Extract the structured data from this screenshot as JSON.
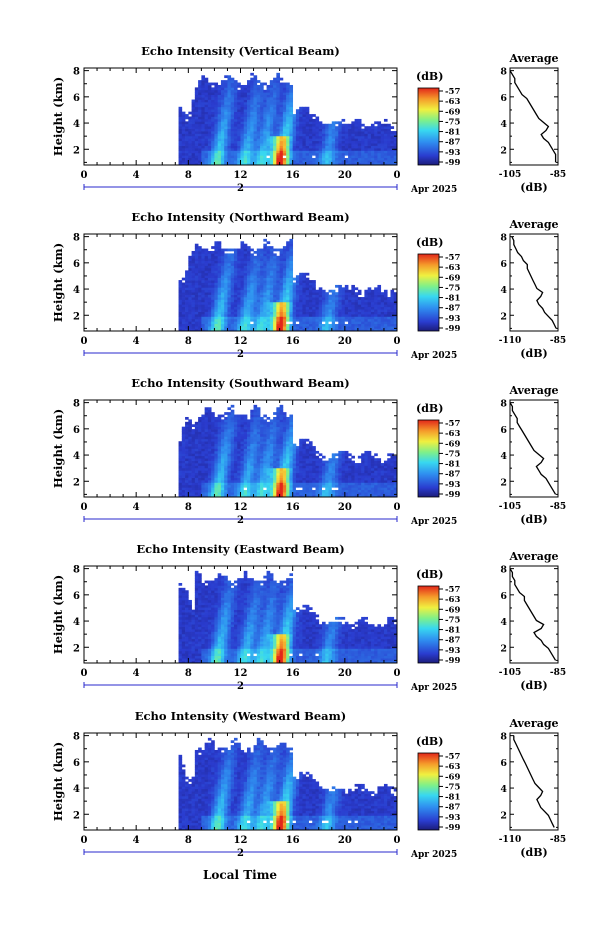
{
  "figure": {
    "xlabel": "Local Time",
    "cbar_unit": "(dB)",
    "avg_title": "Average",
    "avg_xlabel": "(dB)",
    "date_label": "Apr 2025",
    "date_day": "2",
    "height_label": "Height (km)"
  },
  "chart_data": [
    {
      "type": "heatmap",
      "title": "Echo Intensity (Vertical Beam)",
      "ylabel": "Height (km)",
      "x_ticks": [
        "0",
        "4",
        "8",
        "12",
        "16",
        "20",
        "0"
      ],
      "xlim": [
        0,
        24
      ],
      "y_ticks": [
        "2",
        "4",
        "6",
        "8"
      ],
      "ylim": [
        0.8,
        8.2
      ],
      "colorbar": {
        "unit": "(dB)",
        "ticks": [
          "-57",
          "-63",
          "-69",
          "-75",
          "-81",
          "-87",
          "-93",
          "-99"
        ]
      },
      "average": {
        "title": "Average",
        "xlabel": "(dB)",
        "x_ticks": [
          "-105",
          "-85"
        ],
        "y_ticks": [
          "2",
          "4",
          "6",
          "8"
        ],
        "profile_db": [
          -86,
          -86,
          -86,
          -87,
          -88,
          -89,
          -91,
          -92,
          -90,
          -89,
          -91,
          -93,
          -94,
          -95,
          -96,
          -97,
          -98,
          -100,
          -101,
          -102,
          -103,
          -103,
          -104,
          -105
        ]
      }
    },
    {
      "type": "heatmap",
      "title": "Echo Intensity (Northward Beam)",
      "ylabel": "Height (km)",
      "x_ticks": [
        "0",
        "4",
        "8",
        "12",
        "16",
        "20",
        "0"
      ],
      "xlim": [
        0,
        24
      ],
      "y_ticks": [
        "2",
        "4",
        "6",
        "8"
      ],
      "ylim": [
        0.8,
        8.2
      ],
      "colorbar": {
        "unit": "(dB)",
        "ticks": [
          "-57",
          "-63",
          "-69",
          "-75",
          "-81",
          "-87",
          "-93",
          "-99"
        ]
      },
      "average": {
        "title": "Average",
        "xlabel": "(dB)",
        "x_ticks": [
          "-110",
          "-85"
        ],
        "y_ticks": [
          "2",
          "4",
          "6",
          "8"
        ],
        "profile_db": [
          -86,
          -87,
          -88,
          -90,
          -92,
          -93,
          -95,
          -96,
          -94,
          -93,
          -96,
          -97,
          -98,
          -99,
          -100,
          -101,
          -101,
          -103,
          -104,
          -106,
          -107,
          -108,
          -108,
          -109
        ]
      }
    },
    {
      "type": "heatmap",
      "title": "Echo Intensity (Southward Beam)",
      "ylabel": "Height (km)",
      "x_ticks": [
        "0",
        "4",
        "8",
        "12",
        "16",
        "20",
        "0"
      ],
      "xlim": [
        0,
        24
      ],
      "y_ticks": [
        "2",
        "4",
        "6",
        "8"
      ],
      "ylim": [
        0.8,
        8.2
      ],
      "colorbar": {
        "unit": "(dB)",
        "ticks": [
          "-57",
          "-63",
          "-69",
          "-75",
          "-81",
          "-87",
          "-93",
          "-99"
        ]
      },
      "average": {
        "title": "Average",
        "xlabel": "(dB)",
        "x_ticks": [
          "-105",
          "-85"
        ],
        "y_ticks": [
          "2",
          "4",
          "6",
          "8"
        ],
        "profile_db": [
          -86,
          -87,
          -88,
          -89,
          -90,
          -92,
          -93,
          -94,
          -92,
          -91,
          -93,
          -95,
          -96,
          -97,
          -98,
          -99,
          -100,
          -101,
          -102,
          -102,
          -103,
          -104,
          -104,
          -105
        ]
      }
    },
    {
      "type": "heatmap",
      "title": "Echo Intensity (Eastward Beam)",
      "ylabel": "Height (km)",
      "x_ticks": [
        "0",
        "4",
        "8",
        "12",
        "16",
        "20",
        "0"
      ],
      "xlim": [
        0,
        24
      ],
      "y_ticks": [
        "2",
        "4",
        "6",
        "8"
      ],
      "ylim": [
        0.8,
        8.2
      ],
      "colorbar": {
        "unit": "(dB)",
        "ticks": [
          "-57",
          "-63",
          "-69",
          "-75",
          "-81",
          "-87",
          "-93",
          "-99"
        ]
      },
      "average": {
        "title": "Average",
        "xlabel": "(dB)",
        "x_ticks": [
          "-105",
          "-85"
        ],
        "y_ticks": [
          "2",
          "4",
          "6",
          "8"
        ],
        "profile_db": [
          -86,
          -87,
          -88,
          -89,
          -91,
          -92,
          -94,
          -95,
          -92,
          -91,
          -94,
          -95,
          -96,
          -97,
          -98,
          -99,
          -99,
          -101,
          -102,
          -103,
          -103,
          -104,
          -104,
          -105
        ]
      }
    },
    {
      "type": "heatmap",
      "title": "Echo Intensity (Westward Beam)",
      "ylabel": "Height (km)",
      "x_ticks": [
        "0",
        "4",
        "8",
        "12",
        "16",
        "20",
        "0"
      ],
      "xlim": [
        0,
        24
      ],
      "y_ticks": [
        "2",
        "4",
        "6",
        "8"
      ],
      "ylim": [
        0.8,
        8.2
      ],
      "colorbar": {
        "unit": "(dB)",
        "ticks": [
          "-57",
          "-63",
          "-69",
          "-75",
          "-81",
          "-87",
          "-93",
          "-99"
        ]
      },
      "average": {
        "title": "Average",
        "xlabel": "(dB)",
        "x_ticks": [
          "-110",
          "-85"
        ],
        "y_ticks": [
          "2",
          "4",
          "6",
          "8"
        ],
        "profile_db": [
          -87,
          -88,
          -89,
          -90,
          -92,
          -94,
          -95,
          -96,
          -94,
          -93,
          -95,
          -97,
          -98,
          -99,
          -100,
          -101,
          -102,
          -103,
          -104,
          -105,
          -106,
          -107,
          -108,
          -108
        ]
      }
    }
  ]
}
